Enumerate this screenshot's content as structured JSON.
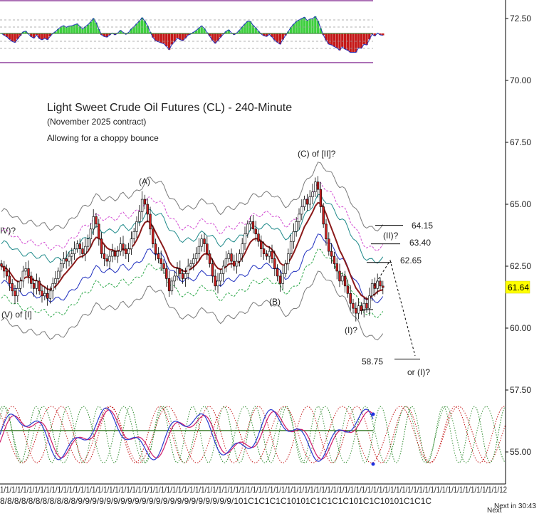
{
  "chart_data": {
    "type": "candlestick",
    "title": "Light Sweet Crude Oil Futures (CL) - 240-Minute",
    "subtitle": "(November 2025 contract)",
    "note": "Allowing for a choppy bounce",
    "y_ticks": [
      "72.50",
      "70.00",
      "67.50",
      "65.00",
      "62.50",
      "60.00",
      "57.50",
      "55.00"
    ],
    "ylim": [
      53.6,
      73.2
    ],
    "last_price": "61.64",
    "x_tick_text": "1/1/1/1/1/1/1/1/1/1/1/1/1/1/1/1/1/1/1/1/1/1/1/1/1/1/1/1/1/1/1/1/1/1/1/1/1/1/1/1/1/1/1/1/1/1/1/1/1/1/1/1/1/1/1/1/1/1/1/1/1/1/1/1/1/1/1/1/1/1/1/1/1/1/1/1/1/1/1/1/1/1/1/1/1/1/1/12",
    "x_date_text": "8/8/8/8/8/8/8/8/8/8/8/9/9/9/9/9/9/9/9/9/9/9/9/9/9/9/9/9/9/9/9/9/9/101C1C1C1C10101C1C1C1C101C1C10101C1C1C",
    "next_bar_text": "Next in 30:43",
    "next_label": "Next",
    "wave_labels": [
      "IV)?",
      "(A)",
      "(V) of [I]",
      "(B)",
      "(C) of [II]?",
      "(I)?",
      "(II)?",
      "or (I)?"
    ],
    "price_levels": [
      {
        "label": "64.15",
        "value": 64.15
      },
      {
        "label": "63.40",
        "value": 63.4
      },
      {
        "label": "62.65",
        "value": 62.65
      },
      {
        "label": "58.75",
        "value": 58.75
      }
    ],
    "closes": [
      62.5,
      62.3,
      62.1,
      61.8,
      61.5,
      61.3,
      61.6,
      61.9,
      62.3,
      62.4,
      62.1,
      61.8,
      61.6,
      61.9,
      61.5,
      61.3,
      61.4,
      61.2,
      61.5,
      61.8,
      62.0,
      62.3,
      62.6,
      62.8,
      62.7,
      62.9,
      63.0,
      63.2,
      63.4,
      63.2,
      63.0,
      63.3,
      63.6,
      64.0,
      64.5,
      64.2,
      63.6,
      63.0,
      62.8,
      62.7,
      62.9,
      63.1,
      62.9,
      63.1,
      63.4,
      63.2,
      63.0,
      63.2,
      63.6,
      63.9,
      64.3,
      64.7,
      65.2,
      65.0,
      64.6,
      64.0,
      63.4,
      63.0,
      62.8,
      62.6,
      62.4,
      62.0,
      61.5,
      61.9,
      62.1,
      62.4,
      62.2,
      62.0,
      62.2,
      62.5,
      62.6,
      62.8,
      63.0,
      63.3,
      63.6,
      63.4,
      63.0,
      62.6,
      62.1,
      61.7,
      61.9,
      62.2,
      62.5,
      62.8,
      63.0,
      62.7,
      62.5,
      62.7,
      63.0,
      63.4,
      63.8,
      64.2,
      64.3,
      64.0,
      63.8,
      63.5,
      63.2,
      63.0,
      62.9,
      63.1,
      62.8,
      62.4,
      62.1,
      61.8,
      62.2,
      62.6,
      63.0,
      63.5,
      63.9,
      64.3,
      64.6,
      64.9,
      65.2,
      65.0,
      65.3,
      65.5,
      65.9,
      65.6,
      64.9,
      64.2,
      63.6,
      63.1,
      62.9,
      62.6,
      62.3,
      61.9,
      62.1,
      61.7,
      61.4,
      61.0,
      60.8,
      60.6,
      60.9,
      60.7,
      61.0,
      60.8,
      61.3,
      61.8,
      61.6,
      61.9,
      61.7,
      61.64
    ],
    "oscillator_price_range": [
      54.5,
      56.9
    ]
  }
}
